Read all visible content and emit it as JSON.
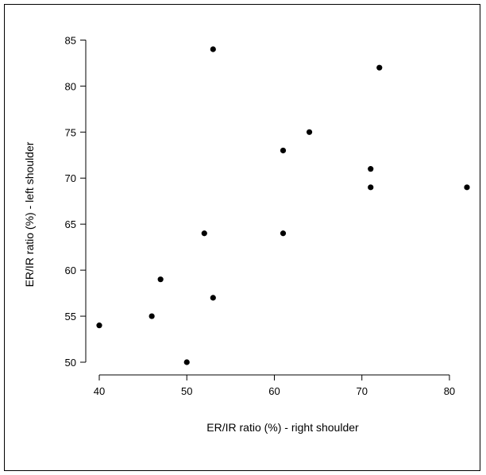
{
  "chart_data": {
    "type": "scatter",
    "xlabel": "ER/IR ratio (%) - right shoulder",
    "ylabel": "ER/IR ratio (%) - left shoulder",
    "xlim": [
      40,
      82
    ],
    "ylim": [
      50,
      84
    ],
    "x_ticks": [
      40,
      50,
      60,
      70,
      80
    ],
    "y_ticks": [
      50,
      55,
      60,
      65,
      70,
      75,
      80,
      85
    ],
    "points": [
      {
        "x": 40,
        "y": 54
      },
      {
        "x": 46,
        "y": 55
      },
      {
        "x": 47,
        "y": 59
      },
      {
        "x": 50,
        "y": 50
      },
      {
        "x": 52,
        "y": 64
      },
      {
        "x": 53,
        "y": 57
      },
      {
        "x": 53,
        "y": 84
      },
      {
        "x": 61,
        "y": 64
      },
      {
        "x": 61,
        "y": 73
      },
      {
        "x": 64,
        "y": 75
      },
      {
        "x": 71,
        "y": 69
      },
      {
        "x": 71,
        "y": 71
      },
      {
        "x": 72,
        "y": 82
      },
      {
        "x": 82,
        "y": 69
      }
    ],
    "grid": false,
    "legend": "none",
    "point_color": "#000000"
  }
}
